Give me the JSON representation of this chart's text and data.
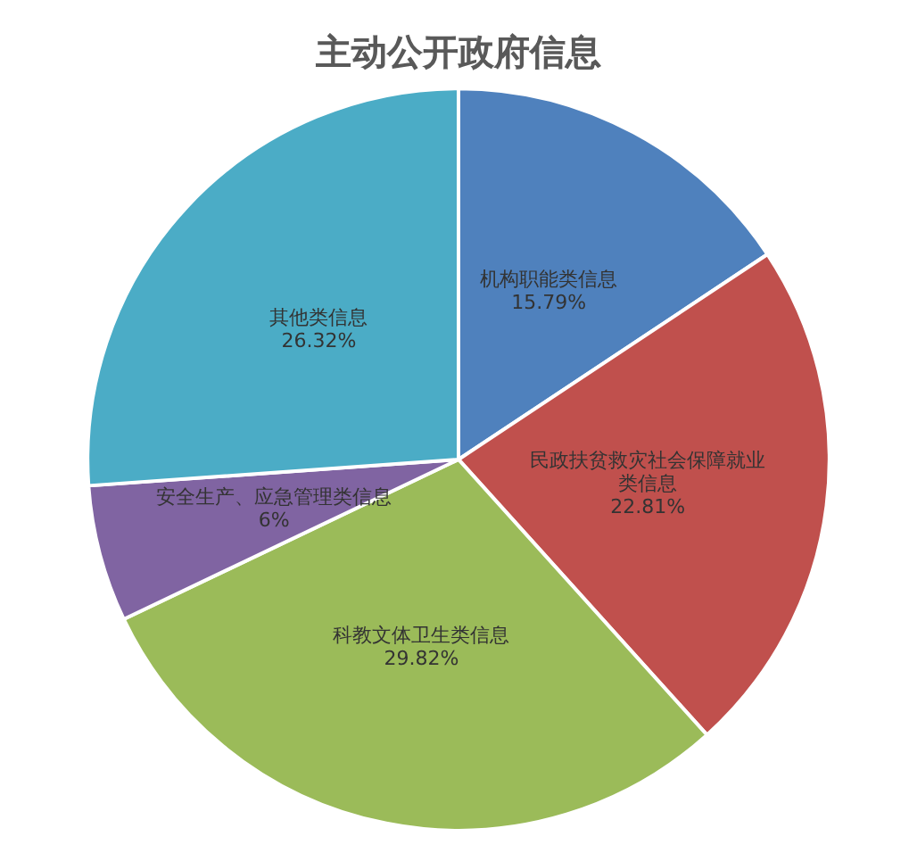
{
  "chart_data": {
    "type": "pie",
    "title": "主动公开政府信息",
    "categories": [
      "机构职能类信息",
      "民政扶贫救灾社会保障就业类信息",
      "科教文体卫生类信息",
      "安全生产、应急管理类信息",
      "其他类信息"
    ],
    "values": [
      15.79,
      22.81,
      29.82,
      6,
      26.32
    ],
    "value_labels": [
      "15.79%",
      "22.81%",
      "29.82%",
      "6%",
      "26.32%"
    ],
    "colors": [
      "#4f81bd",
      "#c0504d",
      "#9bbb59",
      "#8064a2",
      "#4bacc6"
    ],
    "legend": false
  }
}
